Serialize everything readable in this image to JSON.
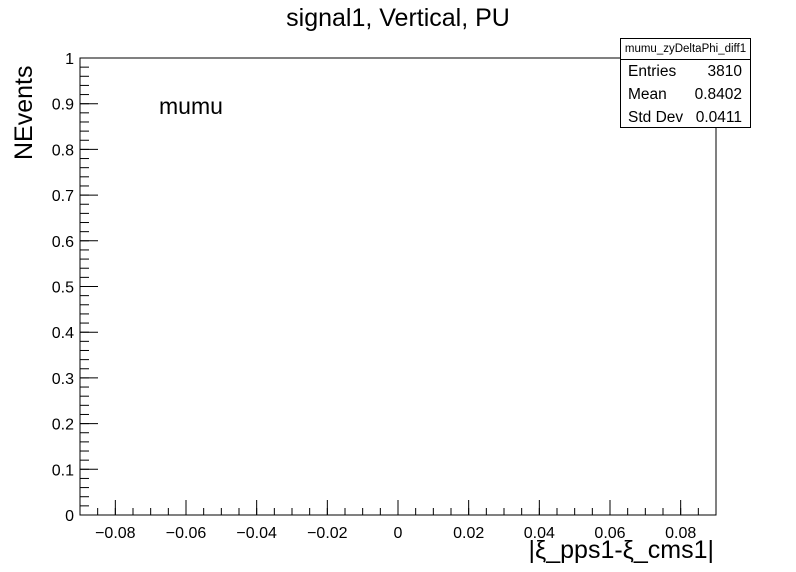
{
  "chart_data": {
    "type": "histogram",
    "title": "signal1, Vertical, PU",
    "xlabel": "|ξ_pps1-ξ_cms1|",
    "ylabel": "NEvents",
    "xlim": [
      -0.09,
      0.09
    ],
    "ylim": [
      0,
      1
    ],
    "x_ticks": [
      -0.08,
      -0.06,
      -0.04,
      -0.02,
      0,
      0.02,
      0.04,
      0.06,
      0.08
    ],
    "x_tick_labels": [
      "−0.08",
      "−0.06",
      "−0.04",
      "−0.02",
      "0",
      "0.02",
      "0.04",
      "0.06",
      "0.08"
    ],
    "y_ticks": [
      0,
      0.1,
      0.2,
      0.3,
      0.4,
      0.5,
      0.6,
      0.7,
      0.8,
      0.9,
      1
    ],
    "y_tick_labels": [
      "0",
      "0.1",
      "0.2",
      "0.3",
      "0.4",
      "0.5",
      "0.6",
      "0.7",
      "0.8",
      "0.9",
      "1"
    ],
    "series": [],
    "annotation": "mumu",
    "grid": false,
    "stats_box": {
      "title": "mumu_zyDeltaPhi_diff1",
      "rows": [
        {
          "label": "Entries",
          "value": "3810"
        },
        {
          "label": "Mean",
          "value": "0.8402"
        },
        {
          "label": "Std Dev",
          "value": "0.0411"
        }
      ]
    }
  }
}
